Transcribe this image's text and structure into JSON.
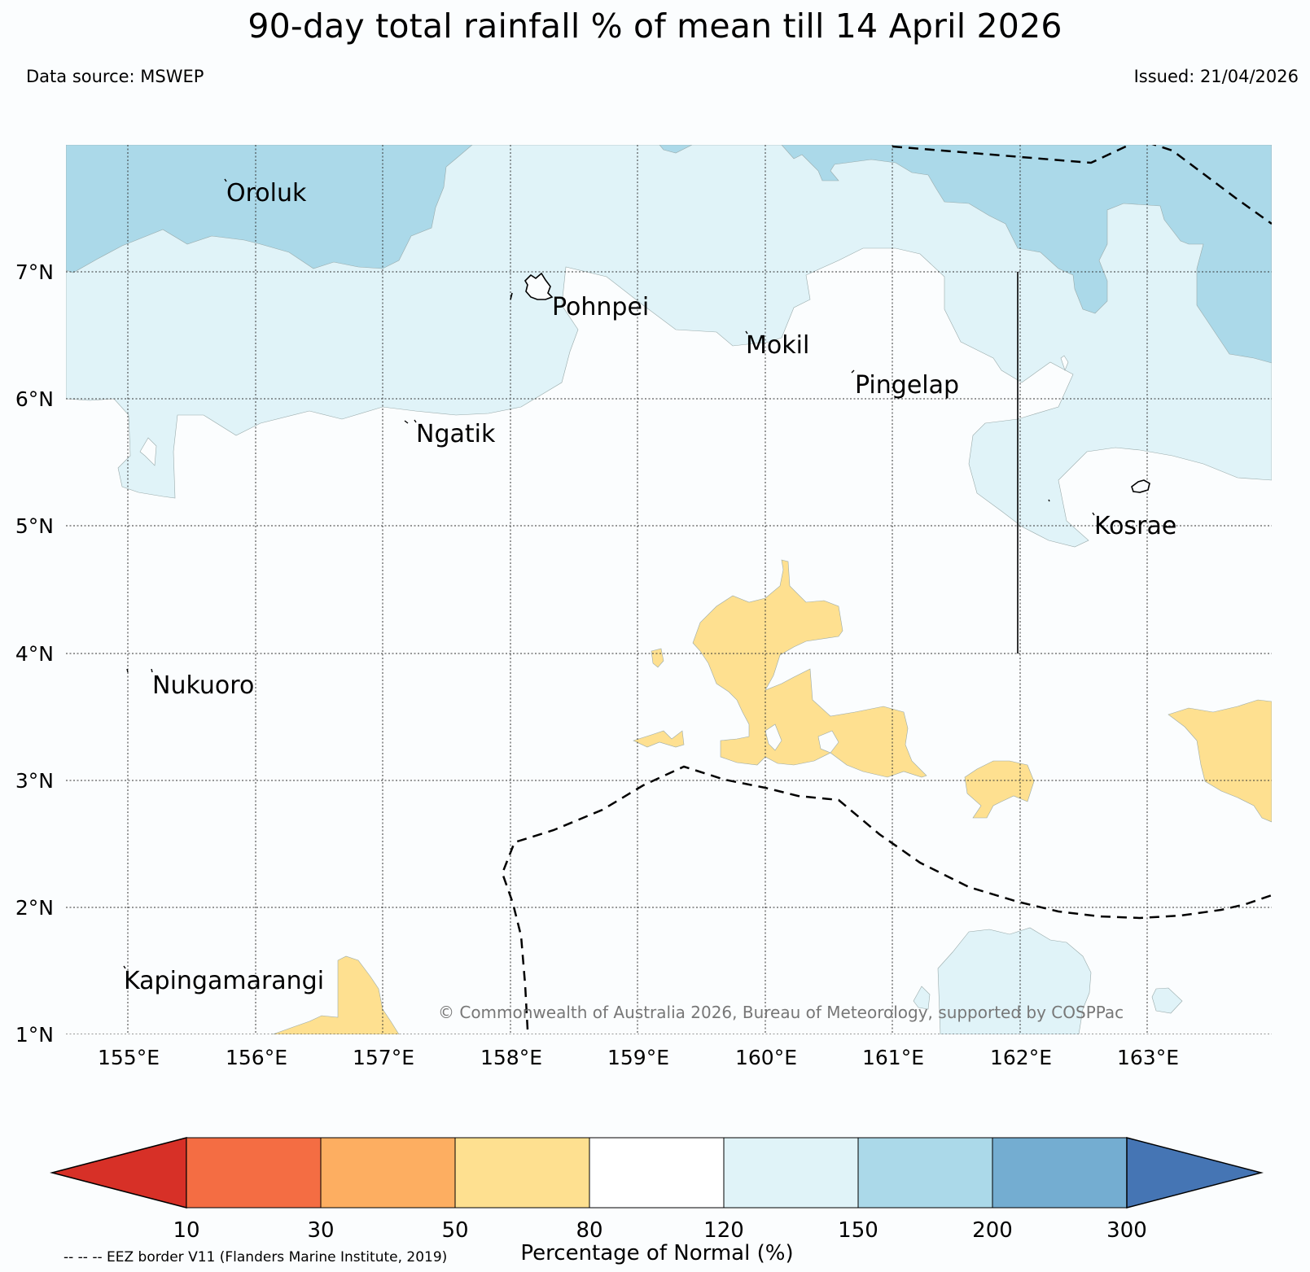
{
  "header": {
    "title": "90-day total rainfall % of mean till 14 April 2026",
    "source": "Data source: MSWEP",
    "issued": "Issued: 21/04/2026"
  },
  "map": {
    "lon_labels": [
      "155°E",
      "156°E",
      "157°E",
      "158°E",
      "159°E",
      "160°E",
      "161°E",
      "162°E",
      "163°E"
    ],
    "lat_labels": [
      "7°N",
      "6°N",
      "5°N",
      "4°N",
      "3°N",
      "2°N",
      "1°N"
    ],
    "places": [
      {
        "name": "Oroluk"
      },
      {
        "name": "Pohnpei"
      },
      {
        "name": "Mokil"
      },
      {
        "name": "Pingelap"
      },
      {
        "name": "Ngatik"
      },
      {
        "name": "Kosrae"
      },
      {
        "name": "Nukuoro"
      },
      {
        "name": "Kapingamarangi"
      }
    ],
    "copyright": "© Commonwealth of Australia 2026, Bureau of Meteorology, supported by COSPPac"
  },
  "legend": {
    "title": "Percentage of Normal (%)",
    "ticks": [
      "10",
      "30",
      "50",
      "80",
      "120",
      "150",
      "200",
      "300"
    ],
    "colors": [
      "#d73027",
      "#f46d43",
      "#fdae61",
      "#fee090",
      "#ffffff",
      "#e0f3f8",
      "#abd9e9",
      "#74add1",
      "#4575b4"
    ],
    "eez_note": "-- -- -- EEZ border V11 (Flanders Marine Institute, 2019)"
  }
}
